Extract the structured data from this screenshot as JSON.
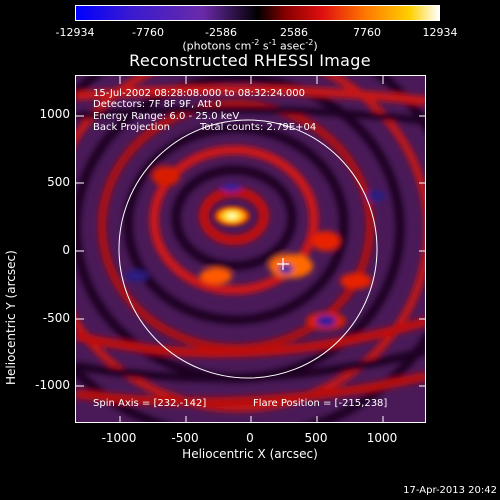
{
  "colorbar": {
    "ticks": [
      "-12934",
      "-7760",
      "-2586",
      "2586",
      "7760",
      "12934"
    ],
    "units_text": "(photons cm",
    "units_exp1": "-2",
    "units_mid": " s",
    "units_exp2": "-1",
    "units_mid2": " asec",
    "units_exp3": "-2",
    "units_end": ")"
  },
  "title": "Reconstructed RHESSI Image",
  "annotations": {
    "line1": "15-Jul-2002 08:28:08.000 to 08:32:24.000",
    "line2": "Detectors: 7F 8F 9F, Att 0",
    "line3": "Energy Range: 6.0 - 25.0 keV",
    "line4a": "Back Projection",
    "line4b": "Total counts: 2.79E+04",
    "spin_axis": "Spin Axis = [232,-142]",
    "flare_position": "Flare Position = [-215,238]"
  },
  "axes": {
    "xlabel": "Heliocentric X (arcsec)",
    "ylabel": "Heliocentric Y (arcsec)",
    "xticks": [
      "-1000",
      "-500",
      "0",
      "500",
      "1000"
    ],
    "yticks": [
      "1000",
      "500",
      "0",
      "-500",
      "-1000"
    ]
  },
  "footer": "17-Apr-2013 20:42",
  "colors": {
    "limb": "#ffffff",
    "background": "#000000"
  }
}
